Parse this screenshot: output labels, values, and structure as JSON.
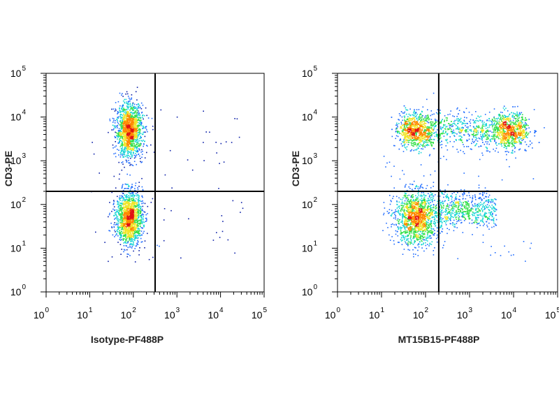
{
  "chart_data": [
    {
      "type": "scatter",
      "title": "",
      "xlabel": "Isotype-PF488P",
      "ylabel": "CD3-PE",
      "x_scale": "log",
      "y_scale": "log",
      "xlim": [
        0,
        5
      ],
      "ylim": [
        0,
        5
      ],
      "x_ticks": [
        {
          "base": "10",
          "exp": "0",
          "value": 0
        },
        {
          "base": "10",
          "exp": "1",
          "value": 1
        },
        {
          "base": "10",
          "exp": "2",
          "value": 2
        },
        {
          "base": "10",
          "exp": "3",
          "value": 3
        },
        {
          "base": "10",
          "exp": "4",
          "value": 4
        },
        {
          "base": "10",
          "exp": "5",
          "value": 5
        }
      ],
      "y_ticks": [
        {
          "base": "10",
          "exp": "0",
          "value": 0
        },
        {
          "base": "10",
          "exp": "1",
          "value": 1
        },
        {
          "base": "10",
          "exp": "2",
          "value": 2
        },
        {
          "base": "10",
          "exp": "3",
          "value": 3
        },
        {
          "base": "10",
          "exp": "4",
          "value": 4
        },
        {
          "base": "10",
          "exp": "5",
          "value": 5
        }
      ],
      "quadrant_gate": {
        "x": 2.5,
        "y": 2.3
      },
      "populations": [
        {
          "name": "CD3+",
          "x_center": 1.9,
          "y_center": 3.7,
          "x_spread": 0.15,
          "y_spread": 0.3
        },
        {
          "name": "CD3-",
          "x_center": 1.9,
          "y_center": 1.7,
          "x_spread": 0.15,
          "y_spread": 0.3
        }
      ],
      "colormap": [
        "#0a1ea8",
        "#1e6bff",
        "#15d5d5",
        "#35e04b",
        "#f0e52a",
        "#ff8a00",
        "#e01212"
      ],
      "grid": false
    },
    {
      "type": "scatter",
      "title": "",
      "xlabel": "MT15B15-PF488P",
      "ylabel": "CD3-PE",
      "x_scale": "log",
      "y_scale": "log",
      "xlim": [
        0,
        5
      ],
      "ylim": [
        0,
        5
      ],
      "x_ticks": [
        {
          "base": "10",
          "exp": "0",
          "value": 0
        },
        {
          "base": "10",
          "exp": "1",
          "value": 1
        },
        {
          "base": "10",
          "exp": "2",
          "value": 2
        },
        {
          "base": "10",
          "exp": "3",
          "value": 3
        },
        {
          "base": "10",
          "exp": "4",
          "value": 4
        },
        {
          "base": "10",
          "exp": "5",
          "value": 5
        }
      ],
      "y_ticks": [
        {
          "base": "10",
          "exp": "0",
          "value": 0
        },
        {
          "base": "10",
          "exp": "1",
          "value": 1
        },
        {
          "base": "10",
          "exp": "2",
          "value": 2
        },
        {
          "base": "10",
          "exp": "3",
          "value": 3
        },
        {
          "base": "10",
          "exp": "4",
          "value": 4
        },
        {
          "base": "10",
          "exp": "5",
          "value": 5
        }
      ],
      "quadrant_gate": {
        "x": 2.3,
        "y": 2.3
      },
      "populations": [
        {
          "name": "CD3+ band",
          "x_range": [
            1.5,
            4.3
          ],
          "y_center": 3.7,
          "y_spread": 0.2,
          "peaks_x": [
            1.75,
            3.9
          ]
        },
        {
          "name": "CD3-",
          "x_center": 1.8,
          "y_center": 1.7,
          "x_spread": 0.25,
          "y_spread": 0.3
        },
        {
          "name": "CD3- tail",
          "x_range": [
            2.3,
            3.6
          ],
          "y_center": 1.9,
          "y_spread": 0.2
        }
      ],
      "colormap": [
        "#0a1ea8",
        "#1e6bff",
        "#15d5d5",
        "#35e04b",
        "#f0e52a",
        "#ff8a00",
        "#e01212"
      ],
      "grid": false
    }
  ]
}
